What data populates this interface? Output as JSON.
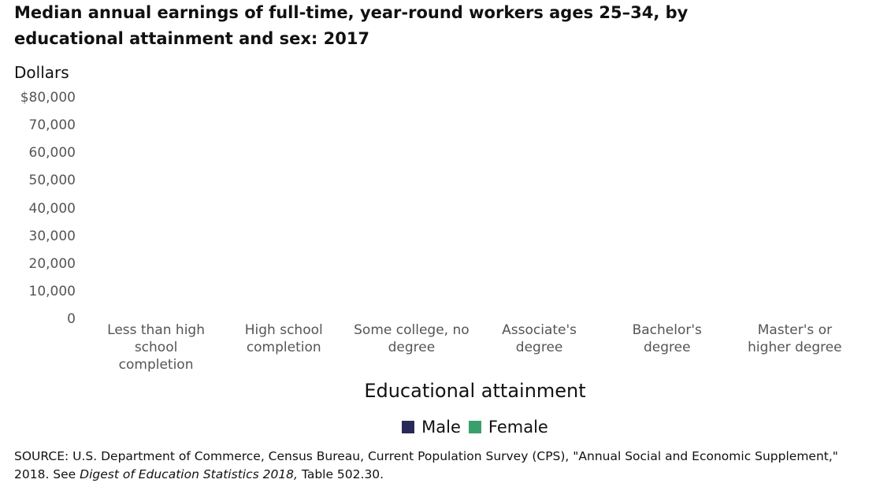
{
  "chart_data": {
    "type": "bar",
    "title": "Median annual earnings of full-time, year-round workers ages 25–34, by educational attainment and sex: 2017",
    "y_label": "Dollars",
    "x_label": "Educational attainment",
    "categories": [
      "Less than high school completion",
      "High school completion",
      "Some college, no degree",
      "Associate's degree",
      "Bachelor's degree",
      "Master's or higher degree"
    ],
    "series": [
      {
        "name": "Male",
        "color": "#272a58",
        "values": [
          null,
          null,
          null,
          null,
          null,
          null
        ]
      },
      {
        "name": "Female",
        "color": "#3aa06b",
        "values": [
          null,
          null,
          null,
          null,
          null,
          null
        ]
      }
    ],
    "ylim": [
      0,
      80000
    ],
    "yticks": [
      0,
      {
        "value": 10000,
        "label": "10,000"
      },
      {
        "value": 20000,
        "label": "20,000"
      },
      {
        "value": 30000,
        "label": "30,000"
      },
      {
        "value": 40000,
        "label": "40,000"
      },
      {
        "value": 50000,
        "label": "50,000"
      },
      {
        "value": 60000,
        "label": "60,000"
      },
      {
        "value": 70000,
        "label": "70,000"
      },
      {
        "value": 80000,
        "label": "$80,000"
      }
    ],
    "grid": false,
    "legend": "bottom",
    "source": {
      "text": "SOURCE: U.S. Department of Commerce, Census Bureau, Current Population Survey (CPS), \"Annual Social and Economic Supplement,\" 2018. See",
      "italic": "Digest of Education Statistics 2018,",
      "end": "Table 502.30."
    }
  }
}
